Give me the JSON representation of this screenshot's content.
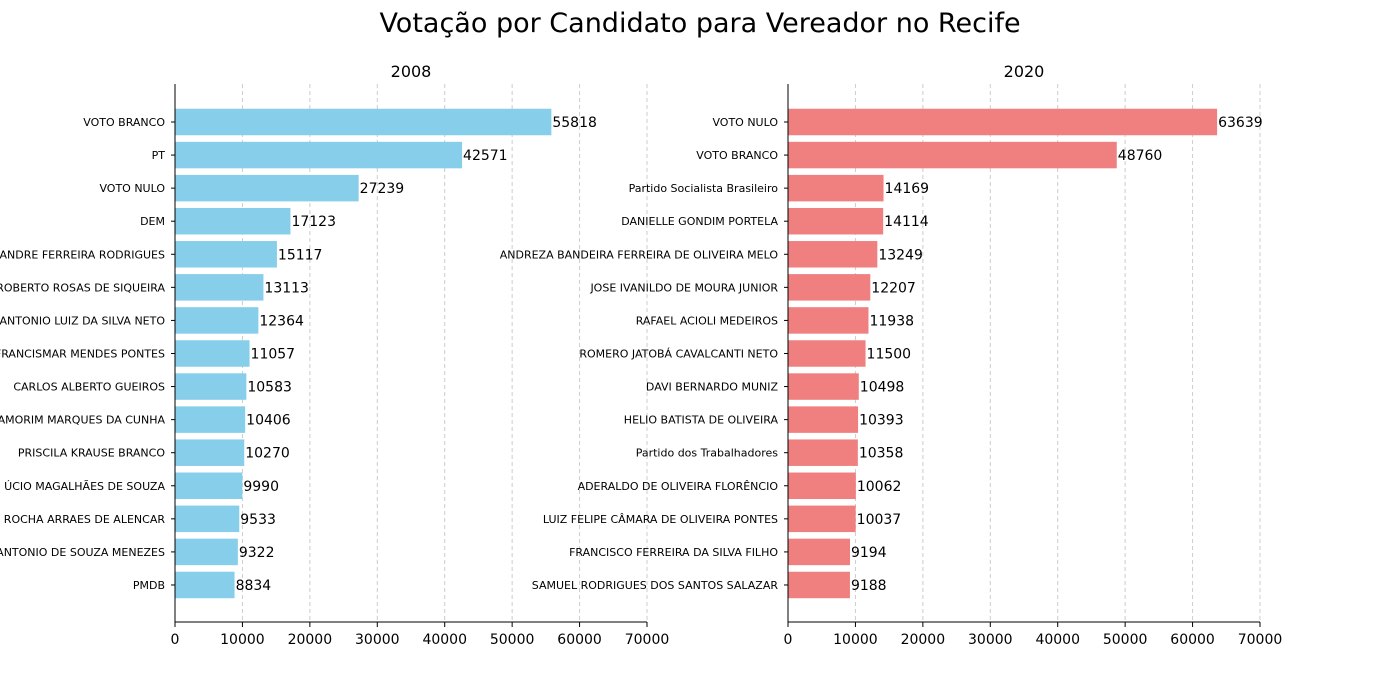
{
  "suptitle": "Votação por Candidato para Vereador no Recife",
  "chart_data": [
    {
      "type": "bar",
      "orientation": "horizontal",
      "title": "2008",
      "xlabel": "",
      "ylabel": "",
      "xlim": [
        0,
        70000
      ],
      "xticks": [
        0,
        10000,
        20000,
        30000,
        40000,
        50000,
        60000,
        70000
      ],
      "grid": "x, dashed",
      "color": "#87ceeb",
      "categories": [
        "VOTO BRANCO",
        "PT",
        "VOTO NULO",
        "DEM",
        "ANDRE FERREIRA RODRIGUES",
        "ROBERTO ROSAS DE SIQUEIRA",
        "ANTONIO LUIZ DA SILVA NETO",
        "FRANCISMAR MENDES PONTES",
        "CARLOS ALBERTO GUEIROS",
        "AMORIM MARQUES DA CUNHA",
        "PRISCILA KRAUSE BRANCO",
        "ÚCIO MAGALHÃES DE SOUZA",
        "ROCHA ARRAES DE ALENCAR",
        "ANTONIO DE SOUZA MENEZES",
        "PMDB"
      ],
      "values": [
        55818,
        42571,
        27239,
        17123,
        15117,
        13113,
        12364,
        11057,
        10583,
        10406,
        10270,
        9990,
        9533,
        9322,
        8834
      ]
    },
    {
      "type": "bar",
      "orientation": "horizontal",
      "title": "2020",
      "xlabel": "",
      "ylabel": "",
      "xlim": [
        0,
        70000
      ],
      "xticks": [
        0,
        10000,
        20000,
        30000,
        40000,
        50000,
        60000,
        70000
      ],
      "grid": "x, dashed",
      "color": "#f08080",
      "categories": [
        "VOTO NULO",
        "VOTO BRANCO",
        "Partido Socialista Brasileiro",
        "DANIELLE GONDIM PORTELA",
        "ANDREZA BANDEIRA FERREIRA DE OLIVEIRA MELO",
        "JOSE IVANILDO DE MOURA JUNIOR",
        "RAFAEL ACIOLI MEDEIROS",
        "ROMERO JATOBÁ CAVALCANTI NETO",
        "DAVI BERNARDO MUNIZ",
        "HELIO BATISTA DE OLIVEIRA",
        "Partido dos Trabalhadores",
        "ADERALDO DE OLIVEIRA FLORÊNCIO",
        "LUIZ FELIPE CÂMARA DE OLIVEIRA PONTES",
        "FRANCISCO FERREIRA DA SILVA FILHO",
        "SAMUEL RODRIGUES DOS SANTOS SALAZAR"
      ],
      "values": [
        63639,
        48760,
        14169,
        14114,
        13249,
        12207,
        11938,
        11500,
        10498,
        10393,
        10358,
        10062,
        10037,
        9194,
        9188
      ]
    }
  ]
}
